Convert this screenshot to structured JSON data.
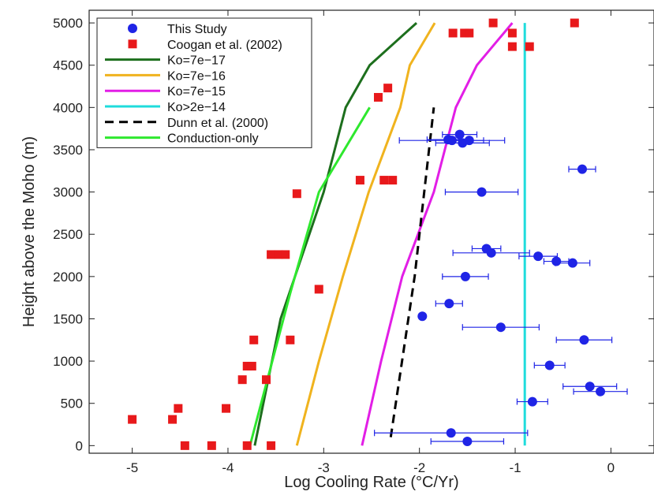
{
  "chart_data": {
    "type": "scatter",
    "xlabel": "Log Cooling Rate (°C/Yr)",
    "ylabel": "Height above the Moho (m)",
    "xlim": [
      -5.45,
      0.45
    ],
    "ylim": [
      -90,
      5150
    ],
    "x_ticks": [
      -5,
      -4,
      -3,
      -2,
      -1,
      0
    ],
    "y_ticks": [
      0,
      500,
      1000,
      1500,
      2000,
      2500,
      3000,
      3500,
      4000,
      4500,
      5000
    ],
    "grid": false,
    "legend_position": "top-left",
    "series": [
      {
        "name": "This Study",
        "kind": "points-errorbars",
        "color": "#1f24e6",
        "points": [
          {
            "x": -1.58,
            "y": 3680,
            "xerr": 0.18
          },
          {
            "x": -1.7,
            "y": 3620,
            "xerr": 0.22
          },
          {
            "x": -1.55,
            "y": 3580,
            "xerr": 0.28
          },
          {
            "x": -1.48,
            "y": 3610,
            "xerr": 0.15
          },
          {
            "x": -1.66,
            "y": 3610,
            "xerr": 0.55
          },
          {
            "x": -0.3,
            "y": 3270,
            "xerr": 0.14
          },
          {
            "x": -1.35,
            "y": 3000,
            "xerr": 0.38
          },
          {
            "x": -1.3,
            "y": 2330,
            "xerr": 0.15
          },
          {
            "x": -1.25,
            "y": 2280,
            "xerr": 0.4
          },
          {
            "x": -0.76,
            "y": 2240,
            "xerr": 0.2
          },
          {
            "x": -0.57,
            "y": 2180,
            "xerr": 0.13
          },
          {
            "x": -0.4,
            "y": 2160,
            "xerr": 0.18
          },
          {
            "x": -1.52,
            "y": 2000,
            "xerr": 0.24
          },
          {
            "x": -1.69,
            "y": 1680,
            "xerr": 0.14
          },
          {
            "x": -1.97,
            "y": 1530,
            "xerr": 0
          },
          {
            "x": -1.15,
            "y": 1400,
            "xerr": 0.4
          },
          {
            "x": -0.28,
            "y": 1250,
            "xerr": 0.29
          },
          {
            "x": -0.64,
            "y": 950,
            "xerr": 0.16
          },
          {
            "x": -0.22,
            "y": 700,
            "xerr": 0.28
          },
          {
            "x": -0.11,
            "y": 640,
            "xerr": 0.28
          },
          {
            "x": -0.82,
            "y": 520,
            "xerr": 0.16
          },
          {
            "x": -1.67,
            "y": 150,
            "xerr": 0.8
          },
          {
            "x": -1.5,
            "y": 50,
            "xerr": 0.38
          }
        ]
      },
      {
        "name": "Coogan et al. (2002)",
        "kind": "squares",
        "color": "#e8191b",
        "points": [
          {
            "x": -5.0,
            "y": 310
          },
          {
            "x": -4.45,
            "y": 0
          },
          {
            "x": -4.52,
            "y": 440
          },
          {
            "x": -4.58,
            "y": 310
          },
          {
            "x": -4.17,
            "y": 0
          },
          {
            "x": -4.02,
            "y": 440
          },
          {
            "x": -3.85,
            "y": 780
          },
          {
            "x": -3.8,
            "y": 940
          },
          {
            "x": -3.8,
            "y": 0
          },
          {
            "x": -3.75,
            "y": 940
          },
          {
            "x": -3.73,
            "y": 1250
          },
          {
            "x": -3.6,
            "y": 780
          },
          {
            "x": -3.55,
            "y": 0
          },
          {
            "x": -3.55,
            "y": 2260
          },
          {
            "x": -3.47,
            "y": 2260
          },
          {
            "x": -3.4,
            "y": 2260
          },
          {
            "x": -3.35,
            "y": 1250
          },
          {
            "x": -3.28,
            "y": 2980
          },
          {
            "x": -3.05,
            "y": 1850
          },
          {
            "x": -2.62,
            "y": 3140
          },
          {
            "x": -2.37,
            "y": 3140
          },
          {
            "x": -2.28,
            "y": 3140
          },
          {
            "x": -2.43,
            "y": 4120
          },
          {
            "x": -2.33,
            "y": 4230
          },
          {
            "x": -1.65,
            "y": 4880
          },
          {
            "x": -1.53,
            "y": 4880
          },
          {
            "x": -1.48,
            "y": 4880
          },
          {
            "x": -1.23,
            "y": 5000
          },
          {
            "x": -1.03,
            "y": 4880
          },
          {
            "x": -1.03,
            "y": 4720
          },
          {
            "x": -0.85,
            "y": 4720
          },
          {
            "x": -0.38,
            "y": 5000
          }
        ]
      },
      {
        "name": "Ko=7e−17",
        "kind": "line",
        "color": "#1d6f1d",
        "points": [
          [
            -3.72,
            0
          ],
          [
            -3.45,
            1500
          ],
          [
            -3.0,
            3000
          ],
          [
            -2.77,
            4000
          ],
          [
            -2.52,
            4500
          ],
          [
            -2.03,
            5000
          ]
        ]
      },
      {
        "name": "Ko=7e−16",
        "kind": "line",
        "color": "#f0b31e",
        "points": [
          [
            -3.28,
            0
          ],
          [
            -3.05,
            1000
          ],
          [
            -2.8,
            2000
          ],
          [
            -2.53,
            3000
          ],
          [
            -2.2,
            4000
          ],
          [
            -2.1,
            4500
          ],
          [
            -1.84,
            5000
          ]
        ]
      },
      {
        "name": "Ko=7e−15",
        "kind": "line",
        "color": "#e21ee6",
        "points": [
          [
            -2.6,
            0
          ],
          [
            -2.4,
            1000
          ],
          [
            -2.18,
            2000
          ],
          [
            -1.85,
            3000
          ],
          [
            -1.62,
            4000
          ],
          [
            -1.4,
            4500
          ],
          [
            -1.03,
            5000
          ]
        ]
      },
      {
        "name": "Ko>2e−14",
        "kind": "line",
        "color": "#1fdcdc",
        "points": [
          [
            -0.9,
            0
          ],
          [
            -0.9,
            5000
          ]
        ]
      },
      {
        "name": "Dunn et al. (2000)",
        "kind": "dashed-line",
        "color": "#000000",
        "points": [
          [
            -2.3,
            100
          ],
          [
            -2.05,
            2000
          ],
          [
            -1.85,
            4000
          ]
        ]
      },
      {
        "name": "Conduction-only",
        "kind": "line",
        "color": "#2ee82e",
        "points": [
          [
            -3.77,
            0
          ],
          [
            -3.35,
            1800
          ],
          [
            -3.05,
            3000
          ],
          [
            -2.52,
            4000
          ]
        ]
      }
    ]
  }
}
